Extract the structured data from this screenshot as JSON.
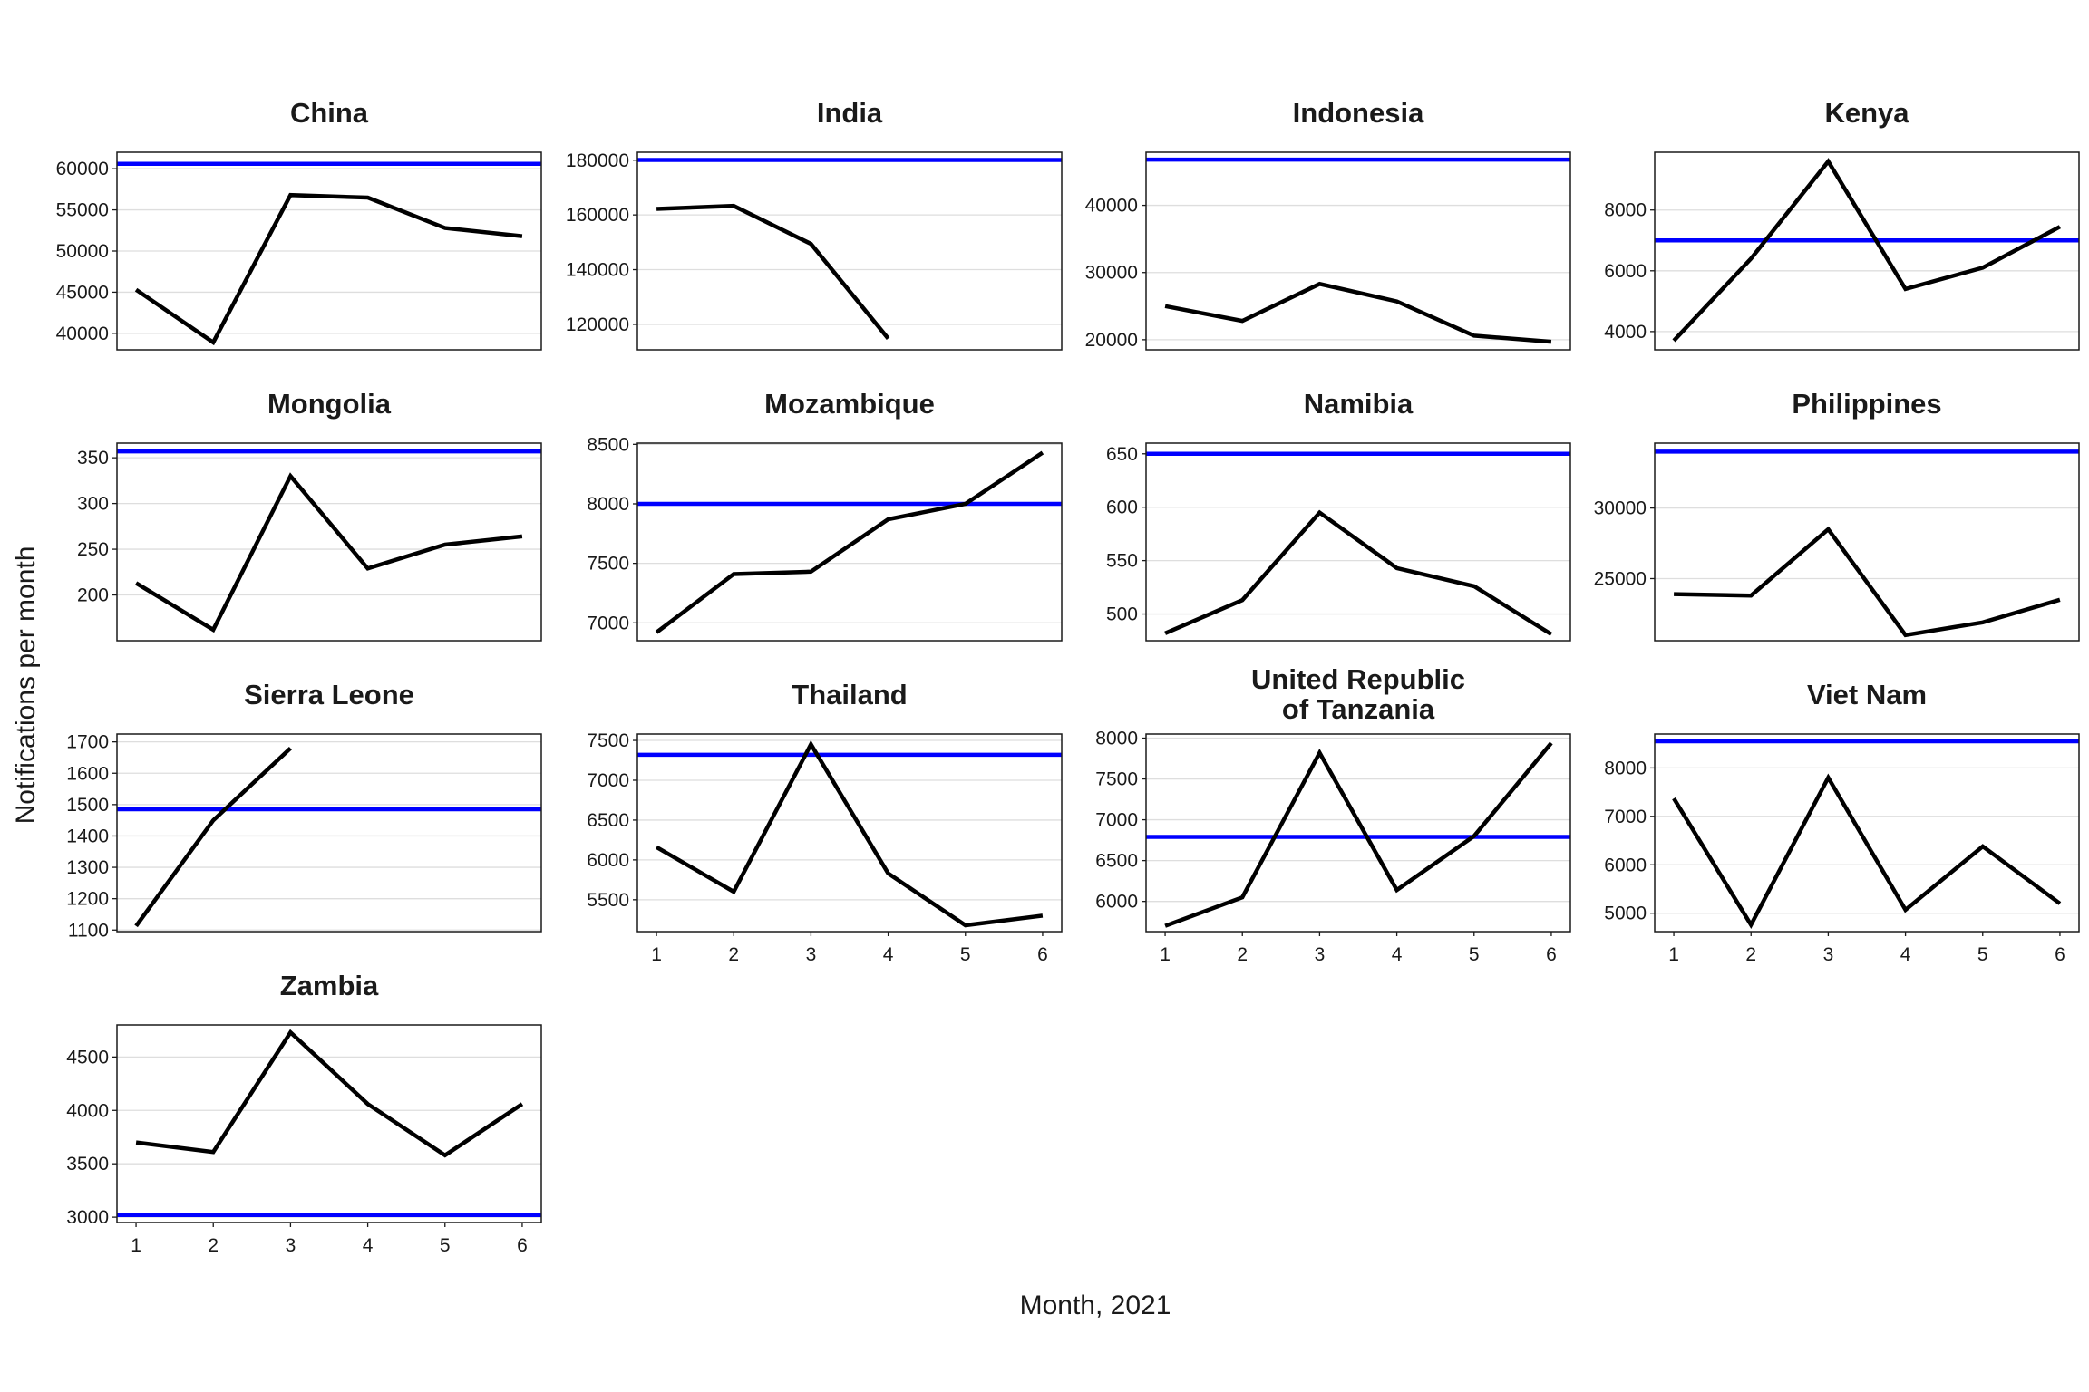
{
  "chart_data": {
    "type": "line",
    "layout": "facets",
    "xlabel": "Month, 2021",
    "ylabel": "Notifications per month",
    "x": [
      1,
      2,
      3,
      4,
      5,
      6
    ],
    "colors": {
      "series": "#000000",
      "reference": "#0000ff"
    },
    "panels": [
      {
        "title": [
          "China"
        ],
        "values": [
          45300,
          38900,
          56800,
          56500,
          52800,
          51800
        ],
        "reference": 60600,
        "ylim": [
          38000,
          62000
        ],
        "yticks": [
          40000,
          45000,
          50000,
          55000,
          60000
        ],
        "tick_labels": [
          "40000",
          "45000",
          "50000",
          "55000",
          "60000"
        ],
        "show_x_labels": false
      },
      {
        "title": [
          "India"
        ],
        "values": [
          162200,
          163300,
          149400,
          114800,
          null,
          null
        ],
        "reference": 180100,
        "ylim": [
          110700,
          182900
        ],
        "yticks": [
          120000,
          140000,
          160000,
          180000
        ],
        "tick_labels": [
          "120000",
          "140000",
          "160000",
          "180000"
        ],
        "show_x_labels": false
      },
      {
        "title": [
          "Indonesia"
        ],
        "values": [
          25000,
          22800,
          28300,
          25700,
          20600,
          19700
        ],
        "reference": 46800,
        "ylim": [
          18500,
          47900
        ],
        "yticks": [
          20000,
          30000,
          40000
        ],
        "tick_labels": [
          "20000",
          "30000",
          "40000"
        ],
        "show_x_labels": false
      },
      {
        "title": [
          "Kenya"
        ],
        "values": [
          3700,
          6400,
          9600,
          5400,
          6100,
          7450
        ],
        "reference": 7000,
        "ylim": [
          3400,
          9900
        ],
        "yticks": [
          4000,
          6000,
          8000
        ],
        "tick_labels": [
          "4000",
          "6000",
          "8000"
        ],
        "show_x_labels": false
      },
      {
        "title": [
          "Mongolia"
        ],
        "values": [
          213,
          162,
          330,
          229,
          255,
          264
        ],
        "reference": 357,
        "ylim": [
          150,
          366
        ],
        "yticks": [
          200,
          250,
          300,
          350
        ],
        "tick_labels": [
          "200",
          "250",
          "300",
          "350"
        ],
        "show_x_labels": false
      },
      {
        "title": [
          "Mozambique"
        ],
        "values": [
          6920,
          7410,
          7430,
          7870,
          8000,
          8430
        ],
        "reference": 8000,
        "ylim": [
          6850,
          8510
        ],
        "yticks": [
          7000,
          7500,
          8000,
          8500
        ],
        "tick_labels": [
          "7000",
          "7500",
          "8000",
          "8500"
        ],
        "show_x_labels": false
      },
      {
        "title": [
          "Namibia"
        ],
        "values": [
          482,
          513,
          595,
          543,
          526,
          481
        ],
        "reference": 650,
        "ylim": [
          475,
          660
        ],
        "yticks": [
          500,
          550,
          600,
          650
        ],
        "tick_labels": [
          "500",
          "550",
          "600",
          "650"
        ],
        "show_x_labels": false
      },
      {
        "title": [
          "Philippines"
        ],
        "values": [
          23900,
          23800,
          28500,
          21000,
          21900,
          23500
        ],
        "reference": 34000,
        "ylim": [
          20600,
          34600
        ],
        "yticks": [
          25000,
          30000
        ],
        "tick_labels": [
          "25000",
          "30000"
        ],
        "show_x_labels": false
      },
      {
        "title": [
          "Sierra Leone"
        ],
        "values": [
          1113,
          1450,
          1680,
          null,
          null,
          null
        ],
        "reference": 1485,
        "ylim": [
          1095,
          1725
        ],
        "yticks": [
          1100,
          1200,
          1300,
          1400,
          1500,
          1600,
          1700
        ],
        "tick_labels": [
          "1100",
          "1200",
          "1300",
          "1400",
          "1500",
          "1600",
          "1700"
        ],
        "show_x_labels": false
      },
      {
        "title": [
          "Thailand"
        ],
        "values": [
          6160,
          5600,
          7450,
          5830,
          5180,
          5300
        ],
        "reference": 7320,
        "ylim": [
          5100,
          7580
        ],
        "yticks": [
          5500,
          6000,
          6500,
          7000,
          7500
        ],
        "tick_labels": [
          "5500",
          "6000",
          "6500",
          "7000",
          "7500"
        ],
        "show_x_labels": true
      },
      {
        "title": [
          "United Republic",
          "of Tanzania"
        ],
        "values": [
          5700,
          6050,
          7820,
          6140,
          6800,
          7940
        ],
        "reference": 6790,
        "ylim": [
          5630,
          8050
        ],
        "yticks": [
          6000,
          6500,
          7000,
          7500,
          8000
        ],
        "tick_labels": [
          "6000",
          "6500",
          "7000",
          "7500",
          "8000"
        ],
        "show_x_labels": true
      },
      {
        "title": [
          "Viet Nam"
        ],
        "values": [
          7370,
          4760,
          7800,
          5070,
          6380,
          5200
        ],
        "reference": 8550,
        "ylim": [
          4620,
          8700
        ],
        "yticks": [
          5000,
          6000,
          7000,
          8000
        ],
        "tick_labels": [
          "5000",
          "6000",
          "7000",
          "8000"
        ],
        "show_x_labels": true
      },
      {
        "title": [
          "Zambia"
        ],
        "values": [
          3700,
          3610,
          4730,
          4060,
          3580,
          4060
        ],
        "reference": 3020,
        "ylim": [
          2950,
          4800
        ],
        "yticks": [
          3000,
          3500,
          4000,
          4500
        ],
        "tick_labels": [
          "3000",
          "3500",
          "4000",
          "4500"
        ],
        "show_x_labels": true
      }
    ]
  }
}
